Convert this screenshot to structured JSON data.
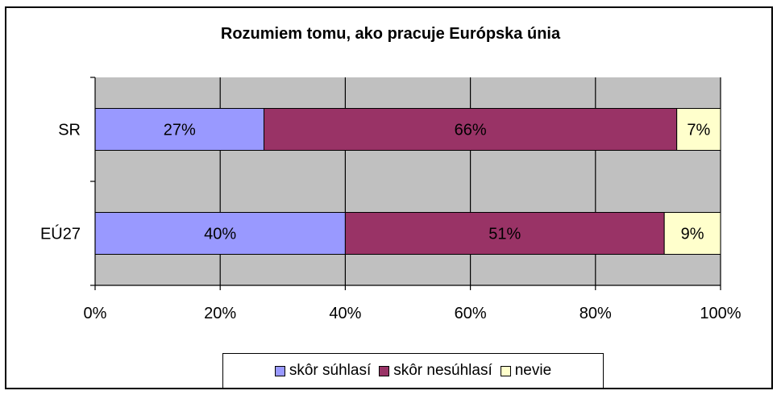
{
  "chart_data": {
    "type": "bar",
    "orientation": "horizontal",
    "stacked": true,
    "percent": true,
    "title": "Rozumiem tomu, ako pracuje Európska únia",
    "categories": [
      "SR",
      "EÚ27"
    ],
    "series": [
      {
        "name": "skôr súhlasí",
        "color": "#9999ff",
        "values": [
          27,
          40
        ],
        "labels": [
          "27%",
          "40%"
        ]
      },
      {
        "name": "skôr nesúhlasí",
        "color": "#993366",
        "values": [
          66,
          51
        ],
        "labels": [
          "66%",
          "51%"
        ]
      },
      {
        "name": "nevie",
        "color": "#ffffcc",
        "values": [
          7,
          9
        ],
        "labels": [
          "7%",
          "9%"
        ]
      }
    ],
    "x_ticks": [
      "0%",
      "20%",
      "40%",
      "60%",
      "80%",
      "100%"
    ],
    "xlim": [
      0,
      100
    ],
    "grid": true,
    "plot_background": "#c0c0c0",
    "legend_position": "bottom"
  }
}
